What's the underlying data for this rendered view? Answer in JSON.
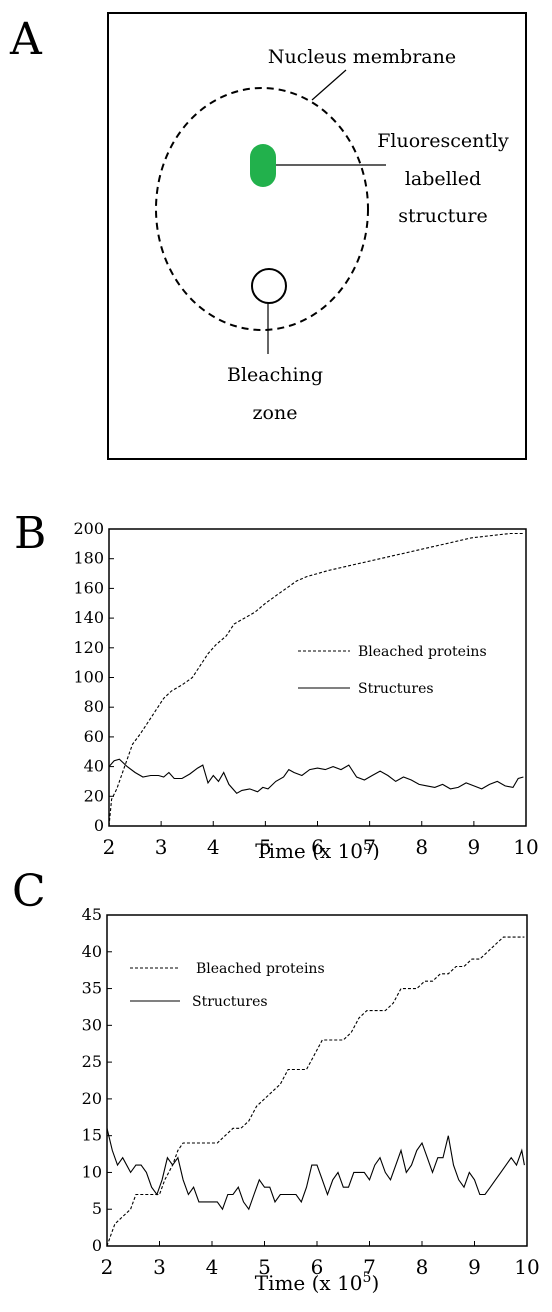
{
  "panels": {
    "a": "A",
    "b": "B",
    "c": "C"
  },
  "diagram": {
    "membrane_label": "Nucleus membrane",
    "structure_label_lines": [
      "Fluorescently",
      "labelled",
      "structure"
    ],
    "bleach_label_lines": [
      "Bleaching",
      "zone"
    ],
    "structure_color": "#22b14c"
  },
  "chart_data": [
    {
      "type": "line",
      "panel": "B",
      "xlabel": "Time (x 10",
      "xlabel_exp": "5",
      "xlabel_close": ")",
      "xlim": [
        2,
        10
      ],
      "ylim": [
        0,
        200
      ],
      "xticks": [
        2,
        3,
        4,
        5,
        6,
        7,
        8,
        9,
        10
      ],
      "yticks": [
        0,
        20,
        40,
        60,
        80,
        100,
        120,
        140,
        160,
        180,
        200
      ],
      "series": [
        {
          "name": "Bleached proteins",
          "style": "dashed",
          "points": [
            [
              2.0,
              0
            ],
            [
              2.05,
              18
            ],
            [
              2.15,
              25
            ],
            [
              2.3,
              40
            ],
            [
              2.45,
              55
            ],
            [
              2.6,
              62
            ],
            [
              2.75,
              70
            ],
            [
              2.9,
              78
            ],
            [
              3.05,
              86
            ],
            [
              3.2,
              91
            ],
            [
              3.4,
              95
            ],
            [
              3.6,
              100
            ],
            [
              3.75,
              108
            ],
            [
              3.9,
              116
            ],
            [
              4.05,
              122
            ],
            [
              4.25,
              128
            ],
            [
              4.4,
              136
            ],
            [
              4.6,
              140
            ],
            [
              4.8,
              144
            ],
            [
              5.0,
              150
            ],
            [
              5.2,
              155
            ],
            [
              5.4,
              160
            ],
            [
              5.6,
              165
            ],
            [
              5.8,
              168
            ],
            [
              6.0,
              170
            ],
            [
              6.2,
              172
            ],
            [
              6.45,
              174
            ],
            [
              6.7,
              176
            ],
            [
              6.95,
              178
            ],
            [
              7.2,
              180
            ],
            [
              7.45,
              182
            ],
            [
              7.7,
              184
            ],
            [
              7.95,
              186
            ],
            [
              8.2,
              188
            ],
            [
              8.45,
              190
            ],
            [
              8.7,
              192
            ],
            [
              8.95,
              194
            ],
            [
              9.2,
              195
            ],
            [
              9.45,
              196
            ],
            [
              9.7,
              197
            ],
            [
              9.95,
              197
            ]
          ]
        },
        {
          "name": "Structures",
          "style": "solid",
          "points": [
            [
              2.0,
              40
            ],
            [
              2.1,
              44
            ],
            [
              2.2,
              45
            ],
            [
              2.35,
              40
            ],
            [
              2.5,
              36
            ],
            [
              2.65,
              33
            ],
            [
              2.8,
              34
            ],
            [
              2.95,
              34
            ],
            [
              3.05,
              33
            ],
            [
              3.15,
              36
            ],
            [
              3.25,
              32
            ],
            [
              3.4,
              32
            ],
            [
              3.55,
              35
            ],
            [
              3.7,
              39
            ],
            [
              3.8,
              41
            ],
            [
              3.9,
              29
            ],
            [
              4.0,
              34
            ],
            [
              4.1,
              30
            ],
            [
              4.2,
              36
            ],
            [
              4.3,
              28
            ],
            [
              4.45,
              22
            ],
            [
              4.55,
              24
            ],
            [
              4.7,
              25
            ],
            [
              4.85,
              23
            ],
            [
              4.95,
              26
            ],
            [
              5.05,
              25
            ],
            [
              5.2,
              30
            ],
            [
              5.35,
              33
            ],
            [
              5.45,
              38
            ],
            [
              5.55,
              36
            ],
            [
              5.7,
              34
            ],
            [
              5.85,
              38
            ],
            [
              6.0,
              39
            ],
            [
              6.15,
              38
            ],
            [
              6.3,
              40
            ],
            [
              6.45,
              38
            ],
            [
              6.6,
              41
            ],
            [
              6.75,
              33
            ],
            [
              6.9,
              31
            ],
            [
              7.05,
              34
            ],
            [
              7.2,
              37
            ],
            [
              7.35,
              34
            ],
            [
              7.5,
              30
            ],
            [
              7.65,
              33
            ],
            [
              7.8,
              31
            ],
            [
              7.95,
              28
            ],
            [
              8.1,
              27
            ],
            [
              8.25,
              26
            ],
            [
              8.4,
              28
            ],
            [
              8.55,
              25
            ],
            [
              8.7,
              26
            ],
            [
              8.85,
              29
            ],
            [
              9.0,
              27
            ],
            [
              9.15,
              25
            ],
            [
              9.3,
              28
            ],
            [
              9.45,
              30
            ],
            [
              9.6,
              27
            ],
            [
              9.75,
              26
            ],
            [
              9.85,
              32
            ],
            [
              9.95,
              33
            ]
          ]
        }
      ]
    },
    {
      "type": "line",
      "panel": "C",
      "xlabel": "Time (x 10",
      "xlabel_exp": "5",
      "xlabel_close": ")",
      "xlim": [
        2,
        10
      ],
      "ylim": [
        0,
        45
      ],
      "xticks": [
        2,
        3,
        4,
        5,
        6,
        7,
        8,
        9,
        10
      ],
      "yticks": [
        0,
        5,
        10,
        15,
        20,
        25,
        30,
        35,
        40,
        45
      ],
      "series": [
        {
          "name": "Bleached proteins",
          "style": "dashed",
          "points": [
            [
              2.0,
              0
            ],
            [
              2.05,
              1
            ],
            [
              2.15,
              3
            ],
            [
              2.3,
              4
            ],
            [
              2.45,
              5
            ],
            [
              2.55,
              7
            ],
            [
              2.7,
              7
            ],
            [
              2.85,
              7
            ],
            [
              3.0,
              7
            ],
            [
              3.1,
              9
            ],
            [
              3.25,
              11
            ],
            [
              3.35,
              13
            ],
            [
              3.45,
              14
            ],
            [
              3.6,
              14
            ],
            [
              3.8,
              14
            ],
            [
              4.0,
              14
            ],
            [
              4.1,
              14
            ],
            [
              4.25,
              15
            ],
            [
              4.4,
              16
            ],
            [
              4.55,
              16
            ],
            [
              4.7,
              17
            ],
            [
              4.85,
              19
            ],
            [
              5.0,
              20
            ],
            [
              5.15,
              21
            ],
            [
              5.3,
              22
            ],
            [
              5.45,
              24
            ],
            [
              5.6,
              24
            ],
            [
              5.8,
              24
            ],
            [
              5.95,
              26
            ],
            [
              6.1,
              28
            ],
            [
              6.3,
              28
            ],
            [
              6.5,
              28
            ],
            [
              6.65,
              29
            ],
            [
              6.8,
              31
            ],
            [
              6.95,
              32
            ],
            [
              7.1,
              32
            ],
            [
              7.3,
              32
            ],
            [
              7.45,
              33
            ],
            [
              7.6,
              35
            ],
            [
              7.75,
              35
            ],
            [
              7.9,
              35
            ],
            [
              8.05,
              36
            ],
            [
              8.2,
              36
            ],
            [
              8.35,
              37
            ],
            [
              8.5,
              37
            ],
            [
              8.65,
              38
            ],
            [
              8.8,
              38
            ],
            [
              8.95,
              39
            ],
            [
              9.1,
              39
            ],
            [
              9.25,
              40
            ],
            [
              9.4,
              41
            ],
            [
              9.55,
              42
            ],
            [
              9.75,
              42
            ],
            [
              9.95,
              42
            ]
          ]
        },
        {
          "name": "Structures",
          "style": "solid",
          "points": [
            [
              2.0,
              16
            ],
            [
              2.1,
              13
            ],
            [
              2.2,
              11
            ],
            [
              2.3,
              12
            ],
            [
              2.45,
              10
            ],
            [
              2.55,
              11
            ],
            [
              2.65,
              11
            ],
            [
              2.75,
              10
            ],
            [
              2.85,
              8
            ],
            [
              2.95,
              7
            ],
            [
              3.05,
              9
            ],
            [
              3.15,
              12
            ],
            [
              3.25,
              11
            ],
            [
              3.35,
              12
            ],
            [
              3.45,
              9
            ],
            [
              3.55,
              7
            ],
            [
              3.65,
              8
            ],
            [
              3.75,
              6
            ],
            [
              3.85,
              6
            ],
            [
              4.0,
              6
            ],
            [
              4.1,
              6
            ],
            [
              4.2,
              5
            ],
            [
              4.3,
              7
            ],
            [
              4.4,
              7
            ],
            [
              4.5,
              8
            ],
            [
              4.6,
              6
            ],
            [
              4.7,
              5
            ],
            [
              4.8,
              7
            ],
            [
              4.9,
              9
            ],
            [
              5.0,
              8
            ],
            [
              5.1,
              8
            ],
            [
              5.2,
              6
            ],
            [
              5.3,
              7
            ],
            [
              5.4,
              7
            ],
            [
              5.5,
              7
            ],
            [
              5.6,
              7
            ],
            [
              5.7,
              6
            ],
            [
              5.8,
              8
            ],
            [
              5.9,
              11
            ],
            [
              6.0,
              11
            ],
            [
              6.1,
              9
            ],
            [
              6.2,
              7
            ],
            [
              6.3,
              9
            ],
            [
              6.4,
              10
            ],
            [
              6.5,
              8
            ],
            [
              6.6,
              8
            ],
            [
              6.7,
              10
            ],
            [
              6.8,
              10
            ],
            [
              6.9,
              10
            ],
            [
              7.0,
              9
            ],
            [
              7.1,
              11
            ],
            [
              7.2,
              12
            ],
            [
              7.3,
              10
            ],
            [
              7.4,
              9
            ],
            [
              7.5,
              11
            ],
            [
              7.6,
              13
            ],
            [
              7.7,
              10
            ],
            [
              7.8,
              11
            ],
            [
              7.9,
              13
            ],
            [
              8.0,
              14
            ],
            [
              8.1,
              12
            ],
            [
              8.2,
              10
            ],
            [
              8.3,
              12
            ],
            [
              8.4,
              12
            ],
            [
              8.5,
              15
            ],
            [
              8.6,
              11
            ],
            [
              8.7,
              9
            ],
            [
              8.8,
              8
            ],
            [
              8.9,
              10
            ],
            [
              9.0,
              9
            ],
            [
              9.1,
              7
            ],
            [
              9.2,
              7
            ],
            [
              9.3,
              8
            ],
            [
              9.4,
              9
            ],
            [
              9.5,
              10
            ],
            [
              9.6,
              11
            ],
            [
              9.7,
              12
            ],
            [
              9.8,
              11
            ],
            [
              9.9,
              13
            ],
            [
              9.95,
              11
            ]
          ]
        }
      ]
    }
  ]
}
